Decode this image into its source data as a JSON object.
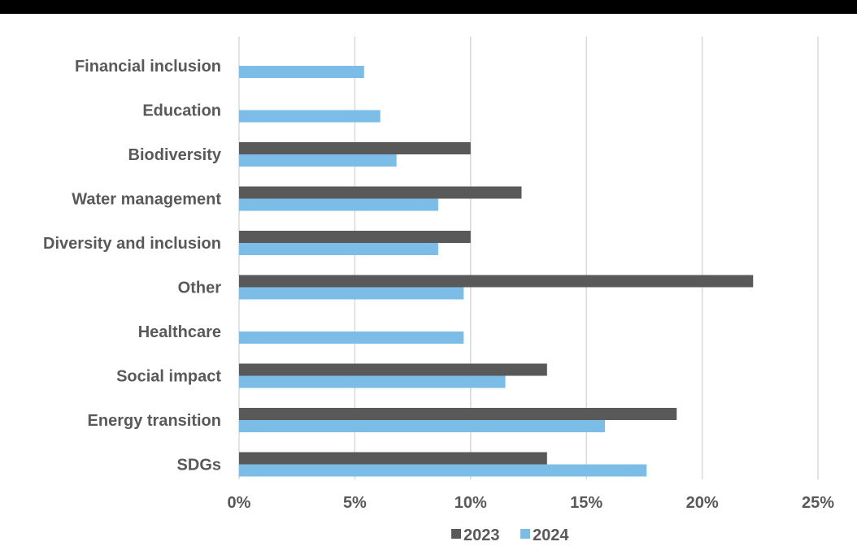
{
  "colors": {
    "top_band": "#000000",
    "background": "#ffffff",
    "grid": "#d9d9d9",
    "text": "#595959"
  },
  "chart_data": {
    "type": "bar",
    "orientation": "horizontal",
    "categories": [
      "Financial inclusion",
      "Education",
      "Biodiversity",
      "Water management",
      "Diversity and inclusion",
      "Other",
      "Healthcare",
      "Social impact",
      "Energy transition",
      "SDGs"
    ],
    "series": [
      {
        "name": "2023",
        "color": "#595959",
        "values": [
          null,
          null,
          10.0,
          12.2,
          10.0,
          22.2,
          null,
          13.3,
          18.9,
          13.3
        ]
      },
      {
        "name": "2024",
        "color": "#7cbde8",
        "values": [
          5.4,
          6.1,
          6.8,
          8.6,
          8.6,
          9.7,
          9.7,
          11.5,
          15.8,
          17.6
        ]
      }
    ],
    "x_ticks": [
      "0%",
      "5%",
      "10%",
      "15%",
      "20%",
      "25%"
    ],
    "x_tick_values": [
      0,
      5,
      10,
      15,
      20,
      25
    ],
    "xlim": [
      0,
      25
    ],
    "unit": "%",
    "grid": true,
    "legend_position": "bottom"
  }
}
